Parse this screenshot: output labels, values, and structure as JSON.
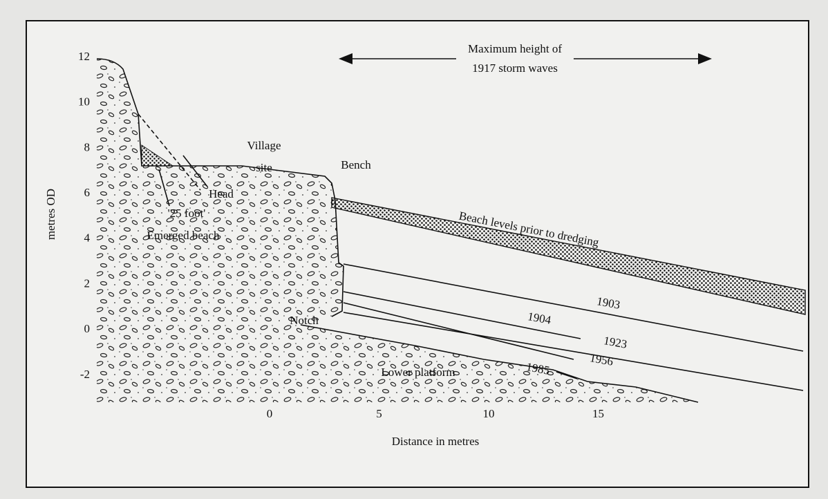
{
  "arrow_label": [
    "Maximum height of",
    "1917 storm waves"
  ],
  "y_axis": {
    "label": "metres OD",
    "ticks": [
      12,
      10,
      8,
      6,
      4,
      2,
      0,
      -2
    ]
  },
  "x_axis": {
    "label": "Distance in metres",
    "ticks": [
      0,
      5,
      10,
      15
    ]
  },
  "labels": {
    "village": [
      "Village",
      "site"
    ],
    "bench": "Bench",
    "head": "Head",
    "emerged": [
      "'25 foot'",
      "Emerged beach"
    ],
    "beach_levels": "Beach levels prior to dredging",
    "notch": "Notch",
    "lower_platform": "Lower platform",
    "years": [
      "1903",
      "1904",
      "1923",
      "1956",
      "1985"
    ]
  }
}
